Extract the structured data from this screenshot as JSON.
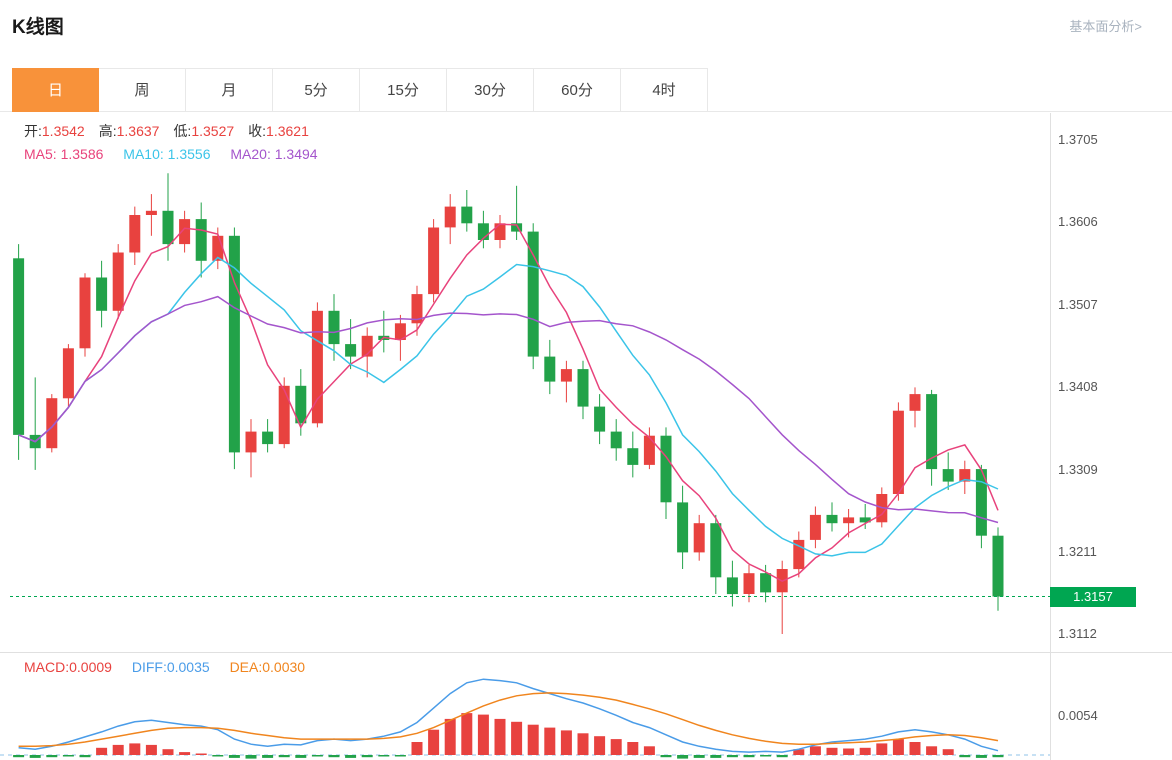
{
  "header": {
    "title": "K线图",
    "link_label": "基本面分析>"
  },
  "tabs": [
    {
      "label": "日",
      "active": true
    },
    {
      "label": "周",
      "active": false
    },
    {
      "label": "月",
      "active": false
    },
    {
      "label": "5分",
      "active": false
    },
    {
      "label": "15分",
      "active": false
    },
    {
      "label": "30分",
      "active": false
    },
    {
      "label": "60分",
      "active": false
    },
    {
      "label": "4时",
      "active": false
    }
  ],
  "legend": {
    "ohlc": [
      {
        "label": "开:",
        "value": "1.3542"
      },
      {
        "label": "高:",
        "value": "1.3637"
      },
      {
        "label": "低:",
        "value": "1.3527"
      },
      {
        "label": "收:",
        "value": "1.3621"
      }
    ],
    "ma": [
      {
        "label": "MA5:",
        "value": "1.3586"
      },
      {
        "label": "MA10:",
        "value": "1.3556"
      },
      {
        "label": "MA20:",
        "value": "1.3494"
      }
    ]
  },
  "macd_legend": [
    {
      "label": "MACD:",
      "value": "0.0009"
    },
    {
      "label": "DIFF:",
      "value": "0.0035"
    },
    {
      "label": "DEA:",
      "value": "0.0030"
    }
  ],
  "colors": {
    "accent_orange": "#f8923a",
    "up_red": "#e8423f",
    "down_green": "#22a249",
    "badge_green": "#00a651",
    "ma5_pink": "#e8437c",
    "ma10_cyan": "#3bc4e8",
    "ma20_purple": "#a455cc",
    "diff_blue": "#4a9ce8",
    "dea_orange": "#f0851e",
    "zero_line_blue": "#8fc3ea",
    "border_gray": "#e8e8e8"
  },
  "chart_data": [
    {
      "type": "candlestick",
      "name": "日K",
      "legend_ohlc": {
        "open": 1.3542,
        "high": 1.3637,
        "low": 1.3527,
        "close": 1.3621
      },
      "overlays": [
        {
          "name": "MA5",
          "value": 1.3586
        },
        {
          "name": "MA10",
          "value": 1.3556
        },
        {
          "name": "MA20",
          "value": 1.3494
        }
      ],
      "y_axis_labels": [
        "1.3705",
        "1.3606",
        "1.3507",
        "1.3408",
        "1.3309",
        "1.3211",
        "1.3112"
      ],
      "y_range": [
        1.3112,
        1.3705
      ],
      "current_price": 1.3157,
      "current_price_label": "1.3157",
      "candles": [
        [
          1.3563,
          1.358,
          1.3321,
          1.3351
        ],
        [
          1.3351,
          1.342,
          1.3309,
          1.3335
        ],
        [
          1.3335,
          1.34,
          1.333,
          1.3395
        ],
        [
          1.3395,
          1.346,
          1.3385,
          1.3455
        ],
        [
          1.3455,
          1.3545,
          1.3445,
          1.354
        ],
        [
          1.354,
          1.356,
          1.348,
          1.35
        ],
        [
          1.35,
          1.358,
          1.349,
          1.357
        ],
        [
          1.357,
          1.3625,
          1.3555,
          1.3615
        ],
        [
          1.3615,
          1.364,
          1.359,
          1.362
        ],
        [
          1.362,
          1.3665,
          1.356,
          1.358
        ],
        [
          1.358,
          1.362,
          1.357,
          1.361
        ],
        [
          1.361,
          1.363,
          1.354,
          1.356
        ],
        [
          1.356,
          1.36,
          1.355,
          1.359
        ],
        [
          1.359,
          1.36,
          1.331,
          1.333
        ],
        [
          1.333,
          1.337,
          1.33,
          1.3355
        ],
        [
          1.3355,
          1.337,
          1.333,
          1.334
        ],
        [
          1.334,
          1.342,
          1.3335,
          1.341
        ],
        [
          1.341,
          1.343,
          1.335,
          1.3365
        ],
        [
          1.3365,
          1.351,
          1.336,
          1.35
        ],
        [
          1.35,
          1.352,
          1.344,
          1.346
        ],
        [
          1.346,
          1.349,
          1.343,
          1.3445
        ],
        [
          1.3445,
          1.348,
          1.342,
          1.347
        ],
        [
          1.347,
          1.35,
          1.345,
          1.3465
        ],
        [
          1.3465,
          1.3495,
          1.344,
          1.3485
        ],
        [
          1.3485,
          1.353,
          1.347,
          1.352
        ],
        [
          1.352,
          1.361,
          1.351,
          1.36
        ],
        [
          1.36,
          1.364,
          1.358,
          1.3625
        ],
        [
          1.3625,
          1.3645,
          1.3595,
          1.3605
        ],
        [
          1.3605,
          1.362,
          1.3575,
          1.3585
        ],
        [
          1.3585,
          1.3615,
          1.3575,
          1.3605
        ],
        [
          1.3605,
          1.365,
          1.3585,
          1.3595
        ],
        [
          1.3595,
          1.3605,
          1.343,
          1.3445
        ],
        [
          1.3445,
          1.3465,
          1.34,
          1.3415
        ],
        [
          1.3415,
          1.344,
          1.339,
          1.343
        ],
        [
          1.343,
          1.344,
          1.337,
          1.3385
        ],
        [
          1.3385,
          1.34,
          1.334,
          1.3355
        ],
        [
          1.3355,
          1.337,
          1.332,
          1.3335
        ],
        [
          1.3335,
          1.3355,
          1.33,
          1.3315
        ],
        [
          1.3315,
          1.336,
          1.331,
          1.335
        ],
        [
          1.335,
          1.336,
          1.325,
          1.327
        ],
        [
          1.327,
          1.329,
          1.319,
          1.321
        ],
        [
          1.321,
          1.3255,
          1.32,
          1.3245
        ],
        [
          1.3245,
          1.3255,
          1.316,
          1.318
        ],
        [
          1.318,
          1.32,
          1.3145,
          1.316
        ],
        [
          1.316,
          1.3195,
          1.315,
          1.3185
        ],
        [
          1.3185,
          1.3195,
          1.315,
          1.3162
        ],
        [
          1.3162,
          1.32,
          1.3112,
          1.319
        ],
        [
          1.319,
          1.3235,
          1.318,
          1.3225
        ],
        [
          1.3225,
          1.3265,
          1.3215,
          1.3255
        ],
        [
          1.3255,
          1.327,
          1.3235,
          1.3245
        ],
        [
          1.3245,
          1.3262,
          1.3228,
          1.3252
        ],
        [
          1.3252,
          1.3268,
          1.3238,
          1.3246
        ],
        [
          1.3246,
          1.3288,
          1.324,
          1.328
        ],
        [
          1.328,
          1.339,
          1.3272,
          1.338
        ],
        [
          1.338,
          1.3408,
          1.336,
          1.34
        ],
        [
          1.34,
          1.3405,
          1.329,
          1.331
        ],
        [
          1.331,
          1.333,
          1.3285,
          1.3295
        ],
        [
          1.3295,
          1.332,
          1.328,
          1.331
        ],
        [
          1.331,
          1.3315,
          1.3215,
          1.323
        ],
        [
          1.323,
          1.324,
          1.314,
          1.3157
        ]
      ]
    },
    {
      "type": "bar",
      "name": "MACD",
      "legend": {
        "macd": 0.0009,
        "diff": 0.0035,
        "dea": 0.003
      },
      "y_axis_labels": [
        "0.0054"
      ],
      "zero_line": true,
      "histogram": [
        -0.0003,
        -0.0004,
        -0.0003,
        -0.0002,
        -0.0003,
        0.001,
        0.0014,
        0.0016,
        0.0014,
        0.0008,
        0.0004,
        0.0002,
        -0.0002,
        -0.0004,
        -0.0005,
        -0.0004,
        -0.0003,
        -0.0004,
        -0.0002,
        -0.0003,
        -0.0004,
        -0.0003,
        -0.0002,
        -0.0002,
        0.0018,
        0.0035,
        0.005,
        0.0058,
        0.0056,
        0.005,
        0.0046,
        0.0042,
        0.0038,
        0.0034,
        0.003,
        0.0026,
        0.0022,
        0.0018,
        0.0012,
        -0.0003,
        -0.0005,
        -0.0004,
        -0.0004,
        -0.0003,
        -0.0003,
        -0.0002,
        -0.0003,
        0.0008,
        0.0012,
        0.001,
        0.0009,
        0.001,
        0.0016,
        0.0022,
        0.0018,
        0.0012,
        0.0008,
        -0.0003,
        -0.0004,
        -0.0003
      ],
      "diff": [
        0.001,
        0.0008,
        0.0012,
        0.0018,
        0.0025,
        0.0032,
        0.004,
        0.0046,
        0.0048,
        0.0045,
        0.0042,
        0.004,
        0.0035,
        0.0022,
        0.0015,
        0.0012,
        0.0015,
        0.0014,
        0.002,
        0.0022,
        0.002,
        0.0022,
        0.0026,
        0.0032,
        0.0045,
        0.0065,
        0.0085,
        0.01,
        0.0105,
        0.0103,
        0.01,
        0.0092,
        0.0085,
        0.0078,
        0.0072,
        0.0064,
        0.0055,
        0.0045,
        0.0038,
        0.0028,
        0.0018,
        0.0012,
        0.0008,
        0.0005,
        0.0004,
        0.0005,
        0.0004,
        0.0008,
        0.0014,
        0.0018,
        0.002,
        0.0022,
        0.0026,
        0.0032,
        0.0035,
        0.0032,
        0.0028,
        0.0022,
        0.0012,
        0.0006
      ],
      "dea": [
        0.0012,
        0.0012,
        0.0013,
        0.0015,
        0.0018,
        0.0022,
        0.0026,
        0.003,
        0.0034,
        0.0037,
        0.0038,
        0.0038,
        0.0037,
        0.0034,
        0.003,
        0.0027,
        0.0024,
        0.0022,
        0.0022,
        0.0022,
        0.0022,
        0.0022,
        0.0023,
        0.0025,
        0.003,
        0.0038,
        0.0048,
        0.0058,
        0.0068,
        0.0076,
        0.0082,
        0.0085,
        0.0086,
        0.0085,
        0.0083,
        0.008,
        0.0076,
        0.007,
        0.0064,
        0.0057,
        0.0049,
        0.0041,
        0.0034,
        0.0028,
        0.0023,
        0.0019,
        0.0016,
        0.0015,
        0.0015,
        0.0016,
        0.0017,
        0.0018,
        0.002,
        0.0022,
        0.0025,
        0.0027,
        0.0028,
        0.0027,
        0.0024,
        0.002
      ]
    }
  ]
}
